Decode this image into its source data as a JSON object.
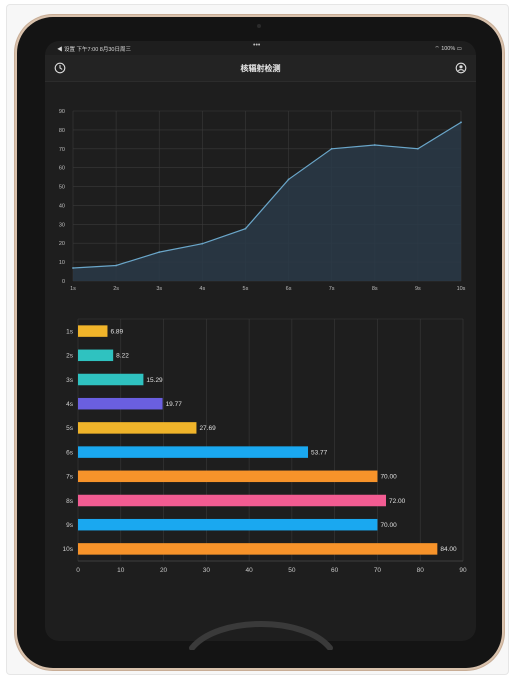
{
  "status_bar": {
    "left": "◀ 设置  下午7:00  8月30日周三",
    "right": "100%"
  },
  "nav": {
    "title": "核辐射检测",
    "left_icon": "clock-icon",
    "right_icon": "profile-icon"
  },
  "chart_data": [
    {
      "type": "area",
      "x": [
        "1s",
        "2s",
        "3s",
        "4s",
        "5s",
        "6s",
        "7s",
        "8s",
        "9s",
        "10s"
      ],
      "values": [
        6.89,
        8.22,
        15.29,
        19.77,
        27.69,
        53.77,
        70.0,
        72.0,
        70.0,
        84.0
      ],
      "ylim": [
        0,
        90
      ],
      "yticks": [
        0,
        10,
        20,
        30,
        40,
        50,
        60,
        70,
        80,
        90
      ],
      "grid": true,
      "colors": {
        "line": "#6aa6c9",
        "fill": "#2a3a48"
      }
    },
    {
      "type": "bar",
      "orientation": "horizontal",
      "categories": [
        "1s",
        "2s",
        "3s",
        "4s",
        "5s",
        "6s",
        "7s",
        "8s",
        "9s",
        "10s"
      ],
      "values": [
        6.89,
        8.22,
        15.29,
        19.77,
        27.69,
        53.77,
        70.0,
        72.0,
        70.0,
        84.0
      ],
      "labels": [
        "6.89",
        "8.22",
        "15.29",
        "19.77",
        "27.69",
        "53.77",
        "70.00",
        "72.00",
        "70.00",
        "84.00"
      ],
      "xlim": [
        0,
        90
      ],
      "xticks": [
        0,
        10,
        20,
        30,
        40,
        50,
        60,
        70,
        80,
        90
      ],
      "grid": true,
      "colors": [
        "#f0b42a",
        "#2fc2c0",
        "#2fc2c0",
        "#6a5fe0",
        "#f0b42a",
        "#1aa8f0",
        "#f7932a",
        "#f25c92",
        "#1aa8f0",
        "#f7932a"
      ]
    }
  ]
}
